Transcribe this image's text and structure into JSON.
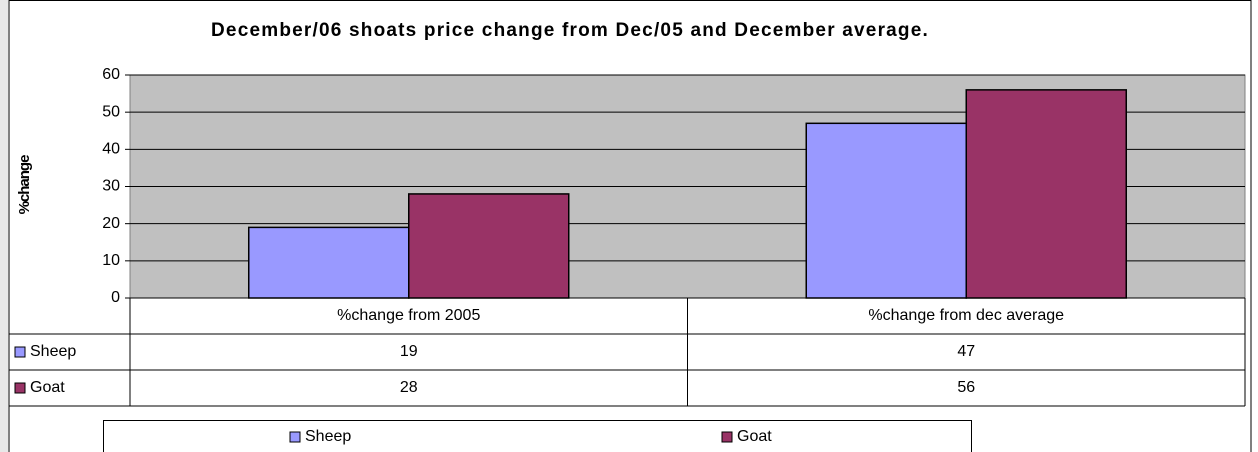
{
  "chart_data": {
    "type": "bar",
    "title": "December/06 shoats price change from Dec/05 and December average.",
    "y_label": "%change",
    "categories": [
      "%change from 2005",
      "%change from dec average"
    ],
    "series": [
      {
        "name": "Sheep",
        "color": "#9999ff",
        "values": [
          19,
          47
        ]
      },
      {
        "name": "Goat",
        "color": "#993366",
        "values": [
          28,
          56
        ]
      }
    ],
    "ylim": [
      0,
      60
    ],
    "yticks": [
      0,
      10,
      20,
      30,
      40,
      50,
      60
    ],
    "grid": true,
    "plot_background": "#c0c0c0",
    "legend": "bottom",
    "data_table": true
  }
}
